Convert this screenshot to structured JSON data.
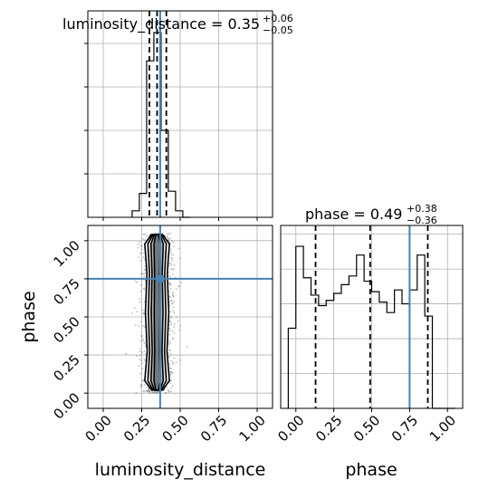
{
  "colors": {
    "truth": "#4682b4",
    "hist": "#000000",
    "grid": "#b0b0b0",
    "scatter": "#444444"
  },
  "chart_data": [
    {
      "type": "histogram",
      "panel": "top-left",
      "title_text": "luminosity_distance = 0.35",
      "title_sup": "+0.06",
      "title_sub": "−0.05",
      "xlim": [
        -0.1,
        1.1
      ],
      "bin_edges": [
        0.188,
        0.235,
        0.282,
        0.329,
        0.376,
        0.423,
        0.47,
        0.517,
        0.564
      ],
      "counts": [
        0.03,
        0.11,
        0.72,
        0.85,
        0.4,
        0.12,
        0.03,
        0.0
      ],
      "ylim": [
        0,
        0.95
      ],
      "quantiles": [
        0.3,
        0.35,
        0.41
      ],
      "truth": 0.37
    },
    {
      "type": "histogram",
      "panel": "bottom-right",
      "title_text": "phase = 0.49",
      "title_sup": "+0.38",
      "title_sub": "−0.36",
      "xlabel": "phase",
      "xlim": [
        -0.1,
        1.1
      ],
      "xticks": [
        "0.00",
        "0.25",
        "0.50",
        "0.75",
        "1.00"
      ],
      "xtick_values": [
        0.0,
        0.25,
        0.5,
        0.75,
        1.0
      ],
      "bin_edges": [
        -0.05,
        0.0,
        0.05,
        0.1,
        0.15,
        0.2,
        0.25,
        0.3,
        0.35,
        0.4,
        0.45,
        0.5,
        0.55,
        0.6,
        0.65,
        0.7,
        0.75,
        0.8,
        0.85,
        0.9,
        0.95,
        1.0,
        1.05
      ],
      "counts": [
        0.46,
        0.93,
        0.75,
        0.65,
        0.59,
        0.62,
        0.66,
        0.71,
        0.76,
        0.88,
        0.73,
        0.67,
        0.61,
        0.55,
        0.68,
        0.6,
        0.68,
        0.88,
        0.53,
        0.0,
        0.0,
        0.0
      ],
      "ylim": [
        0,
        1.05
      ],
      "quantiles": [
        0.13,
        0.49,
        0.87
      ],
      "truth": 0.75
    },
    {
      "type": "scatter-density",
      "panel": "bottom-left",
      "xlabel": "luminosity_distance",
      "ylabel": "phase",
      "xlim": [
        -0.1,
        1.1
      ],
      "ylim": [
        -0.1,
        1.1
      ],
      "xticks": [
        "0.00",
        "0.25",
        "0.50",
        "0.75",
        "1.00"
      ],
      "xtick_values": [
        0.0,
        0.25,
        0.5,
        0.75,
        1.0
      ],
      "yticks": [
        "0.00",
        "0.25",
        "0.50",
        "0.75",
        "1.00"
      ],
      "ytick_values": [
        0.0,
        0.25,
        0.5,
        0.75,
        1.0
      ],
      "x_center": 0.35,
      "x_spread": 0.05,
      "y_range": [
        0.0,
        1.05
      ],
      "contour_widths": [
        0.02,
        0.04,
        0.06,
        0.08
      ],
      "truth": {
        "x": 0.37,
        "y": 0.75
      }
    }
  ]
}
